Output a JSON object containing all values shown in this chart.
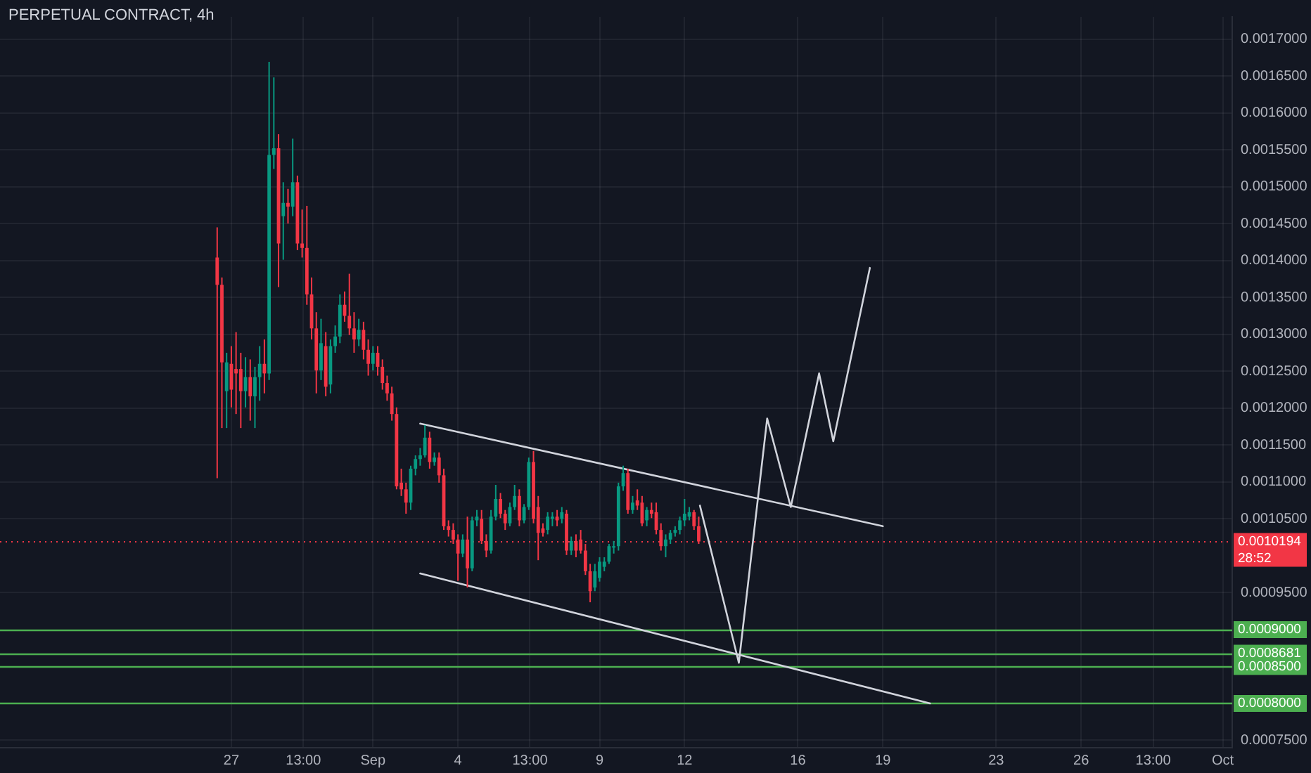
{
  "chart_data": {
    "type": "candlestick",
    "title": "PERPETUAL CONTRACT, 4h",
    "x": [
      "--08-26T12:00",
      "--08-26T16:00",
      "--08-26T20:00",
      "--08-27T00:00",
      "--08-27T04:00",
      "--08-27T08:00",
      "--08-27T12:00",
      "--08-27T16:00",
      "--08-27T20:00",
      "--08-28T00:00",
      "--08-28T04:00",
      "--08-28T08:00",
      "--08-28T12:00",
      "--08-28T16:00",
      "--08-28T20:00",
      "--08-29T00:00",
      "--08-29T04:00",
      "--08-29T08:00",
      "--08-29T12:00",
      "--08-29T16:00",
      "--08-29T20:00",
      "--08-30T00:00",
      "--08-30T04:00",
      "--08-30T08:00",
      "--08-30T12:00",
      "--08-30T16:00",
      "--08-30T20:00",
      "--08-31T00:00",
      "--08-31T04:00",
      "--08-31T08:00",
      "--08-31T12:00",
      "--08-31T16:00",
      "--08-31T20:00",
      "--09-01T00:00",
      "--09-01T04:00",
      "--09-01T08:00",
      "--09-01T12:00",
      "--09-01T16:00",
      "--09-01T20:00",
      "--09-02T00:00",
      "--09-02T04:00",
      "--09-02T08:00",
      "--09-02T12:00",
      "--09-02T16:00",
      "--09-02T20:00",
      "--09-03T00:00",
      "--09-03T04:00",
      "--09-03T08:00",
      "--09-03T12:00",
      "--09-03T16:00",
      "--09-03T20:00",
      "--09-04T00:00",
      "--09-04T04:00",
      "--09-04T08:00",
      "--09-04T12:00",
      "--09-04T16:00",
      "--09-04T20:00",
      "--09-05T00:00",
      "--09-05T04:00",
      "--09-05T08:00",
      "--09-05T12:00",
      "--09-05T16:00",
      "--09-05T20:00",
      "--09-06T00:00",
      "--09-06T04:00",
      "--09-06T08:00",
      "--09-06T12:00",
      "--09-06T16:00",
      "--09-06T20:00",
      "--09-07T00:00",
      "--09-07T04:00",
      "--09-07T08:00",
      "--09-07T12:00",
      "--09-07T16:00",
      "--09-07T20:00",
      "--09-08T00:00",
      "--09-08T04:00",
      "--09-08T08:00",
      "--09-08T12:00",
      "--09-08T16:00",
      "--09-08T20:00",
      "--09-09T00:00",
      "--09-09T04:00",
      "--09-09T08:00",
      "--09-09T12:00",
      "--09-09T16:00",
      "--09-09T20:00",
      "--09-10T00:00",
      "--09-10T04:00",
      "--09-10T08:00",
      "--09-10T12:00",
      "--09-10T16:00",
      "--09-10T20:00",
      "--09-11T00:00",
      "--09-11T04:00",
      "--09-11T08:00",
      "--09-11T12:00",
      "--09-11T16:00",
      "--09-11T20:00",
      "--09-12T00:00",
      "--09-12T04:00",
      "--09-12T08:00",
      "--09-12T12:00"
    ],
    "ohlc": [
      [
        0.001404,
        0.001445,
        0.001105,
        0.001367
      ],
      [
        0.001367,
        0.001377,
        0.001173,
        0.001262
      ],
      [
        0.001223,
        0.001275,
        0.001173,
        0.001262
      ],
      [
        0.00126,
        0.001284,
        0.001201,
        0.001225
      ],
      [
        0.001253,
        0.001303,
        0.001192,
        0.001247
      ],
      [
        0.001253,
        0.001275,
        0.001173,
        0.001223
      ],
      [
        0.001223,
        0.001269,
        0.001201,
        0.001242
      ],
      [
        0.001242,
        0.001266,
        0.001183,
        0.001216
      ],
      [
        0.001216,
        0.001256,
        0.001173,
        0.001242
      ],
      [
        0.001242,
        0.001284,
        0.00121,
        0.00126
      ],
      [
        0.00126,
        0.001293,
        0.00122,
        0.001247
      ],
      [
        0.001247,
        0.001669,
        0.001238,
        0.001543
      ],
      [
        0.001543,
        0.001648,
        0.001524,
        0.001552
      ],
      [
        0.001552,
        0.001571,
        0.001364,
        0.001423
      ],
      [
        0.00146,
        0.001506,
        0.001401,
        0.001478
      ],
      [
        0.001478,
        0.001497,
        0.00145,
        0.001473
      ],
      [
        0.001473,
        0.001565,
        0.00146,
        0.001506
      ],
      [
        0.001506,
        0.001515,
        0.001414,
        0.001423
      ],
      [
        0.001423,
        0.001469,
        0.001404,
        0.001417
      ],
      [
        0.001417,
        0.001474,
        0.00134,
        0.001354
      ],
      [
        0.001354,
        0.001377,
        0.001293,
        0.001308
      ],
      [
        0.001308,
        0.00133,
        0.00122,
        0.001251
      ],
      [
        0.001251,
        0.001321,
        0.001238,
        0.001288
      ],
      [
        0.001284,
        0.001303,
        0.001216,
        0.001229
      ],
      [
        0.001232,
        0.001293,
        0.00122,
        0.001284
      ],
      [
        0.001284,
        0.001312,
        0.001275,
        0.001297
      ],
      [
        0.001297,
        0.001354,
        0.001288,
        0.00134
      ],
      [
        0.00134,
        0.001358,
        0.001317,
        0.001325
      ],
      [
        0.001325,
        0.001382,
        0.001299,
        0.001308
      ],
      [
        0.001308,
        0.00133,
        0.001275,
        0.001293
      ],
      [
        0.001293,
        0.001321,
        0.001284,
        0.001306
      ],
      [
        0.001306,
        0.001317,
        0.001266,
        0.001279
      ],
      [
        0.001279,
        0.001293,
        0.001244,
        0.00126
      ],
      [
        0.00126,
        0.001284,
        0.001251,
        0.001275
      ],
      [
        0.001275,
        0.001284,
        0.001244,
        0.001256
      ],
      [
        0.001256,
        0.001266,
        0.001225,
        0.001234
      ],
      [
        0.001234,
        0.001244,
        0.00121,
        0.00122
      ],
      [
        0.00122,
        0.001229,
        0.001183,
        0.001192
      ],
      [
        0.001192,
        0.001201,
        0.00109,
        0.001094
      ],
      [
        0.001099,
        0.001118,
        0.001081,
        0.00109
      ],
      [
        0.00109,
        0.001099,
        0.001057,
        0.001072
      ],
      [
        0.001072,
        0.001122,
        0.001062,
        0.001118
      ],
      [
        0.001118,
        0.001136,
        0.001109,
        0.001131
      ],
      [
        0.001131,
        0.001146,
        0.001122,
        0.001136
      ],
      [
        0.001136,
        0.001177,
        0.001133,
        0.00116
      ],
      [
        0.00116,
        0.001168,
        0.001118,
        0.001127
      ],
      [
        0.001127,
        0.00114,
        0.001122,
        0.001133
      ],
      [
        0.001133,
        0.00114,
        0.001099,
        0.001109
      ],
      [
        0.001109,
        0.001118,
        0.001035,
        0.00104
      ],
      [
        0.00104,
        0.001048,
        0.001026,
        0.001035
      ],
      [
        0.001035,
        0.001044,
        0.001016,
        0.001022
      ],
      [
        0.001022,
        0.001029,
        0.000966,
        0.001003
      ],
      [
        0.001003,
        0.001029,
        0.000998,
        0.001022
      ],
      [
        0.001022,
        0.001053,
        0.000957,
        0.000983
      ],
      [
        0.000983,
        0.001053,
        0.000979,
        0.001048
      ],
      [
        0.001048,
        0.001062,
        0.00104,
        0.001053
      ],
      [
        0.00105,
        0.001062,
        0.001016,
        0.00102
      ],
      [
        0.00102,
        0.001029,
        0.000998,
        0.001007
      ],
      [
        0.001007,
        0.001062,
        0.001003,
        0.001053
      ],
      [
        0.001053,
        0.001096,
        0.001048,
        0.001077
      ],
      [
        0.001077,
        0.001085,
        0.001051,
        0.001057
      ],
      [
        0.001057,
        0.001062,
        0.001035,
        0.001044
      ],
      [
        0.001044,
        0.001072,
        0.00104,
        0.001066
      ],
      [
        0.001066,
        0.001096,
        0.001062,
        0.001081
      ],
      [
        0.001081,
        0.00109,
        0.00104,
        0.001048
      ],
      [
        0.001048,
        0.00107,
        0.001044,
        0.001066
      ],
      [
        0.001066,
        0.001133,
        0.001062,
        0.001127
      ],
      [
        0.001127,
        0.001142,
        0.001044,
        0.00105
      ],
      [
        0.001066,
        0.001081,
        0.000994,
        0.001031
      ],
      [
        0.001037,
        0.001044,
        0.001026,
        0.001031
      ],
      [
        0.001035,
        0.001059,
        0.001029,
        0.001053
      ],
      [
        0.00105,
        0.001059,
        0.00104,
        0.001053
      ],
      [
        0.001053,
        0.001062,
        0.00104,
        0.001048
      ],
      [
        0.00105,
        0.001066,
        0.001044,
        0.001059
      ],
      [
        0.001057,
        0.001062,
        0.001001,
        0.001007
      ],
      [
        0.001007,
        0.001026,
        0.001001,
        0.00102
      ],
      [
        0.00102,
        0.001029,
        0.000998,
        0.001007
      ],
      [
        0.001022,
        0.001035,
        0.001003,
        0.001007
      ],
      [
        0.001007,
        0.001016,
        0.000974,
        0.000979
      ],
      [
        0.000979,
        0.000989,
        0.000937,
        0.000952
      ],
      [
        0.000957,
        0.000989,
        0.000952,
        0.000979
      ],
      [
        0.00097,
        0.000998,
        0.000965,
        0.000992
      ],
      [
        0.000985,
        0.000998,
        0.000979,
        0.000992
      ],
      [
        0.000992,
        0.001016,
        0.000989,
        0.001013
      ],
      [
        0.001011,
        0.00102,
        0.001003,
        0.001013
      ],
      [
        0.001013,
        0.001099,
        0.001007,
        0.001094
      ],
      [
        0.001094,
        0.001122,
        0.001088,
        0.001112
      ],
      [
        0.001112,
        0.001118,
        0.001057,
        0.001062
      ],
      [
        0.001062,
        0.001081,
        0.001057,
        0.001072
      ],
      [
        0.001075,
        0.00109,
        0.001062,
        0.001068
      ],
      [
        0.001072,
        0.001081,
        0.00104,
        0.001044
      ],
      [
        0.001048,
        0.001066,
        0.00104,
        0.001062
      ],
      [
        0.001062,
        0.001072,
        0.001051,
        0.001057
      ],
      [
        0.001059,
        0.001072,
        0.001029,
        0.001035
      ],
      [
        0.001035,
        0.001044,
        0.001007,
        0.001013
      ],
      [
        0.001013,
        0.001029,
        0.000998,
        0.001022
      ],
      [
        0.001022,
        0.001035,
        0.001016,
        0.001031
      ],
      [
        0.001031,
        0.00104,
        0.001026,
        0.001035
      ],
      [
        0.001035,
        0.001053,
        0.001029,
        0.001048
      ],
      [
        0.001048,
        0.001077,
        0.00104,
        0.001057
      ],
      [
        0.001053,
        0.001066,
        0.001048,
        0.001059
      ],
      [
        0.001059,
        0.001062,
        0.001035,
        0.00104
      ],
      [
        0.00104,
        0.001053,
        0.001016,
        0.0010194
      ]
    ],
    "series": [
      {
        "type": "line",
        "color": "#d1d4dc",
        "x": [
          "--09-02T16:00",
          "--09-19T00:00"
        ],
        "values": [
          0.001179,
          0.00104
        ]
      },
      {
        "type": "line",
        "color": "#d1d4dc",
        "x": [
          "--09-02T16:00",
          "--09-20T16:00"
        ],
        "values": [
          0.000976,
          0.0008
        ]
      },
      {
        "type": "line",
        "color": "#d1d4dc",
        "x": [
          "--09-12T13:00",
          "--09-13T22:00",
          "--09-14T22:00",
          "--09-15T18:00",
          "--09-16T18:00",
          "--09-17T06:00",
          "--09-18T13:00"
        ],
        "values": [
          0.001068,
          0.000855,
          0.001186,
          0.001066,
          0.001247,
          0.001155,
          0.00139
        ]
      }
    ],
    "ref_lines": [
      {
        "axis": "y",
        "value": 0.0010194,
        "label": "0.0010194\n28:52",
        "color": "#f23645",
        "line_style": "dotted"
      },
      {
        "axis": "y",
        "value": 0.0009,
        "label": "0.0009000",
        "color": "#4caf50"
      },
      {
        "axis": "y",
        "value": 0.0008681,
        "label": "0.0008681",
        "color": "#4caf50"
      },
      {
        "axis": "y",
        "value": 0.00085,
        "label": "0.0008500",
        "color": "#4caf50"
      },
      {
        "axis": "y",
        "value": 0.0008,
        "label": "0.0008000",
        "color": "#4caf50"
      }
    ],
    "xlim": [
      "--08-18T20:00",
      "--10-01T08:00"
    ],
    "xticks": [
      {
        "value": "--08-27",
        "label": "27"
      },
      {
        "value": "--08-29T13:00",
        "label": "13:00"
      },
      {
        "value": "--09-01",
        "label": "Sep"
      },
      {
        "value": "--09-04",
        "label": "4"
      },
      {
        "value": "--09-06T13:00",
        "label": "13:00"
      },
      {
        "value": "--09-09",
        "label": "9"
      },
      {
        "value": "--09-12",
        "label": "12"
      },
      {
        "value": "--09-16",
        "label": "16"
      },
      {
        "value": "--09-19",
        "label": "19"
      },
      {
        "value": "--09-23",
        "label": "23"
      },
      {
        "value": "--09-26",
        "label": "26"
      },
      {
        "value": "--09-28T13:00",
        "label": "13:00"
      },
      {
        "value": "--10-01",
        "label": "Oct"
      }
    ],
    "ylim": [
      0.00074,
      0.00173
    ],
    "yticks": [
      {
        "value": 0.00075,
        "label": "0.0007500"
      },
      {
        "value": 0.00095,
        "label": "0.0009500"
      },
      {
        "value": 0.00105,
        "label": "0.0010500"
      },
      {
        "value": 0.0011,
        "label": "0.0011000"
      },
      {
        "value": 0.00115,
        "label": "0.0011500"
      },
      {
        "value": 0.0012,
        "label": "0.0012000"
      },
      {
        "value": 0.00125,
        "label": "0.0012500"
      },
      {
        "value": 0.0013,
        "label": "0.0013000"
      },
      {
        "value": 0.00135,
        "label": "0.0013500"
      },
      {
        "value": 0.0014,
        "label": "0.0014000"
      },
      {
        "value": 0.00145,
        "label": "0.0014500"
      },
      {
        "value": 0.0015,
        "label": "0.0015000"
      },
      {
        "value": 0.00155,
        "label": "0.0015500"
      },
      {
        "value": 0.0016,
        "label": "0.0016000"
      },
      {
        "value": 0.00165,
        "label": "0.0016500"
      },
      {
        "value": 0.0017,
        "label": "0.0017000"
      }
    ],
    "colors": [
      "#f23645",
      "#f23645",
      "#089981",
      "#f23645",
      "#f23645",
      "#f23645",
      "#089981",
      "#f23645",
      "#089981",
      "#089981",
      "#f23645",
      "#089981",
      "#089981",
      "#f23645",
      "#089981",
      "#f23645",
      "#089981",
      "#f23645",
      "#f23645",
      "#f23645",
      "#f23645",
      "#f23645",
      "#089981",
      "#f23645",
      "#089981",
      "#089981",
      "#089981",
      "#f23645",
      "#f23645",
      "#f23645",
      "#089981",
      "#f23645",
      "#f23645",
      "#089981",
      "#f23645",
      "#f23645",
      "#f23645",
      "#f23645",
      "#f23645",
      "#f23645",
      "#f23645",
      "#089981",
      "#089981",
      "#089981",
      "#089981",
      "#f23645",
      "#089981",
      "#f23645",
      "#f23645",
      "#f23645",
      "#f23645",
      "#f23645",
      "#089981",
      "#f23645",
      "#089981",
      "#089981",
      "#f23645",
      "#f23645",
      "#089981",
      "#089981",
      "#f23645",
      "#f23645",
      "#089981",
      "#089981",
      "#f23645",
      "#089981",
      "#089981",
      "#f23645",
      "#f23645",
      "#f23645",
      "#089981",
      "#089981",
      "#f23645",
      "#089981",
      "#f23645",
      "#089981",
      "#f23645",
      "#f23645",
      "#f23645",
      "#f23645",
      "#089981",
      "#089981",
      "#089981",
      "#089981",
      "#089981",
      "#089981",
      "#089981",
      "#f23645",
      "#089981",
      "#f23645",
      "#f23645",
      "#089981",
      "#f23645",
      "#f23645",
      "#f23645",
      "#089981",
      "#089981",
      "#089981",
      "#089981",
      "#089981",
      "#089981",
      "#f23645",
      "#f23645"
    ],
    "grid": true,
    "legend": false
  }
}
